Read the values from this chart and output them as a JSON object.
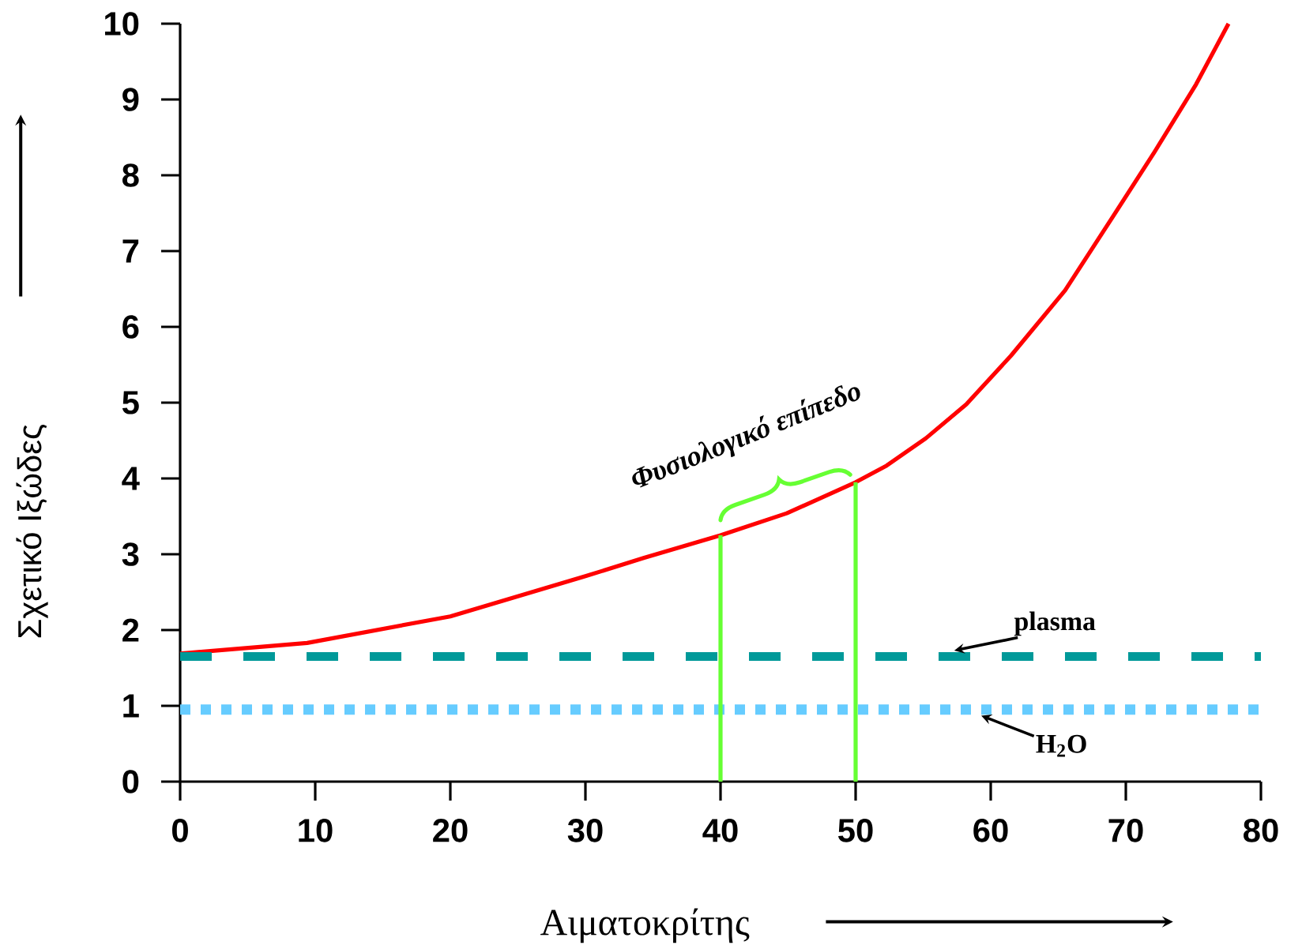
{
  "chart_data": {
    "type": "line",
    "xlabel": "Αιματοκρίτης",
    "ylabel": "Σχετικό Ιξώδες",
    "xlim": [
      0,
      80
    ],
    "ylim": [
      0,
      10
    ],
    "xticks": [
      0,
      10,
      20,
      30,
      40,
      50,
      60,
      70,
      80
    ],
    "yticks": [
      0,
      1,
      2,
      3,
      4,
      5,
      6,
      7,
      8,
      9,
      10
    ],
    "grid": false,
    "marker": "none",
    "series": [
      {
        "color": "#ff0000",
        "line_style": "solid",
        "x": [
          0,
          9.4,
          20,
          30,
          34.3,
          40,
          44.9,
          50,
          52.3,
          55.2,
          58.2,
          61.5,
          65.5,
          69.1,
          72.1,
          75.2,
          77.6
        ],
        "values": [
          1.69,
          1.83,
          2.18,
          2.71,
          2.95,
          3.25,
          3.54,
          3.95,
          4.17,
          4.53,
          4.98,
          5.62,
          6.48,
          7.47,
          8.3,
          9.2,
          10
        ]
      },
      {
        "name": "plasma",
        "color": "#009999",
        "line_style": "dashed",
        "x": [
          0,
          80
        ],
        "values": [
          1.65,
          1.65
        ]
      },
      {
        "name": "H$_{2}$O",
        "color": "#66ccff",
        "line_style": "dotted",
        "x": [
          0,
          80
        ],
        "values": [
          0.95,
          0.95
        ]
      },
      {
        "color": "#66ff33",
        "line_style": "solid",
        "x": [
          40,
          40
        ],
        "values": [
          0,
          3.25
        ]
      },
      {
        "color": "#66ff33",
        "line_style": "solid",
        "x": [
          50,
          50
        ],
        "values": [
          0,
          3.95
        ]
      }
    ],
    "annotations": [
      "Φυσιολογικό επίπεδο"
    ]
  }
}
